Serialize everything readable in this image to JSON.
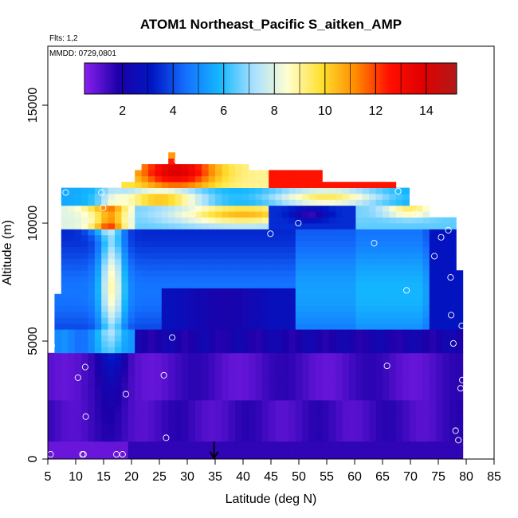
{
  "chart_data": {
    "type": "heatmap",
    "title": "ATOM1 Northeast_Pacific S_aitken_AMP",
    "annotations": [
      "Flts: 1,2",
      "MMDD: 0729,0801"
    ],
    "xlabel": "Latitude (deg N)",
    "ylabel": "Altitude (m)",
    "xlim": [
      5,
      85
    ],
    "ylim": [
      0,
      17500
    ],
    "xticks": [
      5,
      10,
      15,
      20,
      25,
      30,
      35,
      40,
      45,
      50,
      55,
      60,
      65,
      70,
      75,
      80,
      85
    ],
    "yticks": [
      0,
      5000,
      10000,
      15000
    ],
    "colorbar": {
      "range": [
        0.5,
        15.2
      ],
      "ticks": [
        2,
        4,
        6,
        8,
        10,
        12,
        14
      ],
      "stops": [
        "#8a1ff0",
        "#1c00a8",
        "#0016c4",
        "#1470ff",
        "#14b8ff",
        "#a8e0ff",
        "#ffffd0",
        "#ffe030",
        "#ff8c00",
        "#ff1000",
        "#e00000",
        "#b21a1a"
      ]
    },
    "marker_latitude": 34.8,
    "observations": [
      {
        "lat": 5.5,
        "alt": 200
      },
      {
        "lat": 11.2,
        "alt": 200
      },
      {
        "lat": 11.4,
        "alt": 200
      },
      {
        "lat": 17.3,
        "alt": 200
      },
      {
        "lat": 18.4,
        "alt": 200
      },
      {
        "lat": 26.2,
        "alt": 900
      },
      {
        "lat": 78.1,
        "alt": 1200
      },
      {
        "lat": 78.6,
        "alt": 800
      },
      {
        "lat": 11.8,
        "alt": 1800
      },
      {
        "lat": 19.0,
        "alt": 2750
      },
      {
        "lat": 79.0,
        "alt": 3000
      },
      {
        "lat": 79.3,
        "alt": 3350
      },
      {
        "lat": 10.4,
        "alt": 3450
      },
      {
        "lat": 25.8,
        "alt": 3550
      },
      {
        "lat": 11.7,
        "alt": 3900
      },
      {
        "lat": 65.8,
        "alt": 3950
      },
      {
        "lat": 5.7,
        "alt": 4800
      },
      {
        "lat": 77.7,
        "alt": 4900
      },
      {
        "lat": 27.3,
        "alt": 5150
      },
      {
        "lat": 79.2,
        "alt": 5650
      },
      {
        "lat": 77.3,
        "alt": 6100
      },
      {
        "lat": 69.3,
        "alt": 7150
      },
      {
        "lat": 77.2,
        "alt": 7700
      },
      {
        "lat": 74.3,
        "alt": 8600
      },
      {
        "lat": 63.5,
        "alt": 9150
      },
      {
        "lat": 75.5,
        "alt": 9400
      },
      {
        "lat": 44.9,
        "alt": 9550
      },
      {
        "lat": 76.8,
        "alt": 9700
      },
      {
        "lat": 49.9,
        "alt": 10000
      },
      {
        "lat": 31.0,
        "alt": 10400
      },
      {
        "lat": 70.8,
        "alt": 10400
      },
      {
        "lat": 14.9,
        "alt": 10650
      },
      {
        "lat": 8.2,
        "alt": 11300
      },
      {
        "lat": 14.6,
        "alt": 11300
      },
      {
        "lat": 67.8,
        "alt": 11350
      },
      {
        "lat": 28.2,
        "alt": 12650
      }
    ],
    "grid": false
  }
}
